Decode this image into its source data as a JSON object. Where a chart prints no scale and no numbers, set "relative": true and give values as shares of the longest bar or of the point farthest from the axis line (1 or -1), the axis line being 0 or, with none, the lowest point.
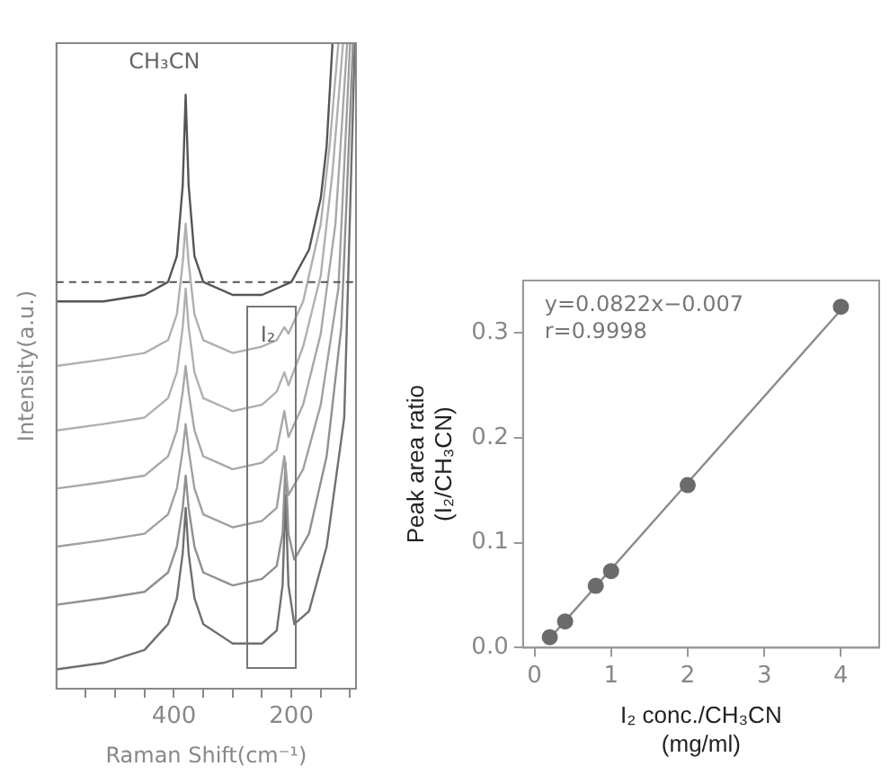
{
  "chart_data": [
    {
      "type": "line",
      "relative": true,
      "xlabel": "Raman Shift(cm⁻¹)",
      "ylabel": "Intensity(a.u.)",
      "xlim": [
        600,
        90
      ],
      "xticks": [
        {
          "value": 550,
          "label": null
        },
        {
          "value": 500,
          "label": null
        },
        {
          "value": 450,
          "label": null
        },
        400,
        {
          "value": 350,
          "label": null
        },
        {
          "value": 300,
          "label": null
        },
        {
          "value": 250,
          "label": null
        },
        200,
        {
          "value": 150,
          "label": null
        },
        {
          "value": 100,
          "label": null
        }
      ],
      "tick_labels": "x",
      "grid": false,
      "legend": false,
      "annotations": [
        "CH₃CN",
        {
          "text": "I₂",
          "x": 240,
          "y": 0.53
        }
      ],
      "ref_lines": [
        {
          "axis": "y",
          "value": 0.63,
          "line_style": "dashed",
          "color": "#555555"
        }
      ],
      "series": [
        {
          "color": "#555555",
          "x": [
            600,
            520,
            450,
            410,
            395,
            385,
            380,
            375,
            365,
            350,
            300,
            250,
            200,
            170,
            150,
            140,
            130
          ],
          "values": [
            0.6,
            0.6,
            0.61,
            0.63,
            0.67,
            0.78,
            0.92,
            0.78,
            0.67,
            0.63,
            0.61,
            0.61,
            0.63,
            0.68,
            0.76,
            0.84,
            1.0
          ]
        },
        {
          "color": "#b0b0b0",
          "x": [
            600,
            520,
            450,
            410,
            395,
            385,
            380,
            375,
            365,
            350,
            300,
            250,
            225,
            212,
            205,
            180,
            150,
            135,
            120
          ],
          "values": [
            0.5,
            0.51,
            0.52,
            0.54,
            0.58,
            0.66,
            0.72,
            0.66,
            0.58,
            0.54,
            0.52,
            0.53,
            0.54,
            0.56,
            0.55,
            0.6,
            0.72,
            0.84,
            1.0
          ]
        },
        {
          "color": "#b0b0b0",
          "x": [
            600,
            520,
            450,
            410,
            395,
            385,
            380,
            375,
            365,
            350,
            300,
            250,
            225,
            212,
            205,
            180,
            150,
            130,
            112
          ],
          "values": [
            0.4,
            0.41,
            0.42,
            0.45,
            0.49,
            0.56,
            0.62,
            0.56,
            0.49,
            0.45,
            0.43,
            0.44,
            0.46,
            0.49,
            0.47,
            0.53,
            0.64,
            0.8,
            1.0
          ]
        },
        {
          "color": "#a8a8a8",
          "x": [
            600,
            520,
            450,
            410,
            395,
            385,
            380,
            375,
            365,
            350,
            300,
            250,
            225,
            212,
            205,
            180,
            150,
            125,
            105
          ],
          "values": [
            0.31,
            0.32,
            0.33,
            0.36,
            0.4,
            0.46,
            0.5,
            0.46,
            0.4,
            0.36,
            0.34,
            0.35,
            0.37,
            0.43,
            0.39,
            0.44,
            0.55,
            0.72,
            1.0
          ]
        },
        {
          "color": "#a0a0a0",
          "x": [
            600,
            520,
            450,
            410,
            395,
            385,
            380,
            375,
            365,
            350,
            300,
            250,
            225,
            212,
            205,
            180,
            150,
            120,
            100
          ],
          "values": [
            0.22,
            0.23,
            0.24,
            0.27,
            0.31,
            0.37,
            0.41,
            0.37,
            0.31,
            0.27,
            0.25,
            0.26,
            0.28,
            0.36,
            0.3,
            0.34,
            0.44,
            0.62,
            1.0
          ]
        },
        {
          "color": "#909090",
          "x": [
            600,
            520,
            450,
            410,
            395,
            385,
            380,
            375,
            365,
            350,
            300,
            250,
            225,
            215,
            210,
            205,
            195,
            170,
            140,
            115,
            95
          ],
          "values": [
            0.13,
            0.14,
            0.15,
            0.18,
            0.22,
            0.28,
            0.33,
            0.28,
            0.22,
            0.18,
            0.16,
            0.17,
            0.19,
            0.24,
            0.35,
            0.24,
            0.2,
            0.24,
            0.36,
            0.56,
            1.0
          ]
        },
        {
          "color": "#707070",
          "x": [
            600,
            520,
            450,
            420,
            410,
            395,
            385,
            380,
            375,
            365,
            350,
            300,
            250,
            225,
            215,
            210,
            205,
            195,
            170,
            140,
            110,
            92
          ],
          "values": [
            0.03,
            0.04,
            0.06,
            0.09,
            0.1,
            0.14,
            0.21,
            0.28,
            0.21,
            0.14,
            0.1,
            0.07,
            0.07,
            0.09,
            0.16,
            0.3,
            0.16,
            0.1,
            0.12,
            0.22,
            0.42,
            1.0
          ]
        }
      ]
    },
    {
      "type": "scatter",
      "xlabel": "I₂ conc./CH₃CN\n(mg/ml)",
      "ylabel": "Peak area ratio\n(I₂/CH₃CN)",
      "xlim": [
        -0.15,
        4.5
      ],
      "xticks": [
        0,
        1,
        2,
        3,
        4
      ],
      "ylim": [
        0,
        0.35
      ],
      "yticks": [
        {
          "value": 0,
          "label": "0.0"
        },
        0.1,
        0.2,
        0.3
      ],
      "grid": false,
      "legend": false,
      "annotations": [
        "y=0.0822x−0.007",
        "r=0.9998"
      ],
      "series": [
        {
          "marker": "circle",
          "color": "#6b6b6b",
          "x": [
            0.2,
            0.4,
            0.8,
            1.0,
            2.0,
            4.0
          ],
          "values": [
            0.01,
            0.025,
            0.059,
            0.073,
            0.155,
            0.325
          ]
        },
        {
          "type": "line",
          "color": "#8a8a8a",
          "x": [
            0.2,
            4.0
          ],
          "values": [
            0.009,
            0.322
          ]
        }
      ]
    }
  ]
}
